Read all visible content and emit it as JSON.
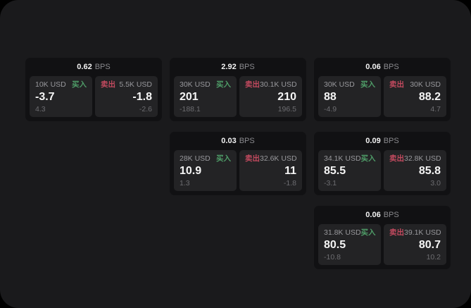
{
  "labels": {
    "bps": "BPS",
    "buy": "买入",
    "sell": "卖出"
  },
  "colors": {
    "page_bg": "#1a1a1c",
    "card_bg": "#111113",
    "panel_bg": "#232325",
    "text_primary": "#f5f5f5",
    "text_secondary": "#98989c",
    "text_dim": "#6d6d71",
    "buy_green": "#4f9d68",
    "sell_red": "#c24a5f"
  },
  "cards": [
    {
      "row": 1,
      "col": 1,
      "bps": "0.62",
      "buy": {
        "amount": "10K USD",
        "value": "-3.7",
        "sub": "4.3"
      },
      "sell": {
        "amount": "5.5K USD",
        "value": "-1.8",
        "sub": "-2.6"
      }
    },
    {
      "row": 1,
      "col": 2,
      "bps": "2.92",
      "buy": {
        "amount": "30K USD",
        "value": "201",
        "sub": "-188.1"
      },
      "sell": {
        "amount": "30.1K USD",
        "value": "210",
        "sub": "196.5"
      }
    },
    {
      "row": 1,
      "col": 3,
      "bps": "0.06",
      "buy": {
        "amount": "30K USD",
        "value": "88",
        "sub": "-4.9"
      },
      "sell": {
        "amount": "30K USD",
        "value": "88.2",
        "sub": "4.7"
      }
    },
    {
      "row": 2,
      "col": 2,
      "bps": "0.03",
      "buy": {
        "amount": "28K USD",
        "value": "10.9",
        "sub": "1.3"
      },
      "sell": {
        "amount": "32.6K USD",
        "value": "11",
        "sub": "-1.8"
      }
    },
    {
      "row": 2,
      "col": 3,
      "bps": "0.09",
      "buy": {
        "amount": "34.1K USD",
        "value": "85.5",
        "sub": "-3.1"
      },
      "sell": {
        "amount": "32.8K USD",
        "value": "85.8",
        "sub": "3.0"
      }
    },
    {
      "row": 3,
      "col": 3,
      "bps": "0.06",
      "buy": {
        "amount": "31.8K USD",
        "value": "80.5",
        "sub": "-10.8"
      },
      "sell": {
        "amount": "39.1K USD",
        "value": "80.7",
        "sub": "10.2"
      }
    }
  ]
}
